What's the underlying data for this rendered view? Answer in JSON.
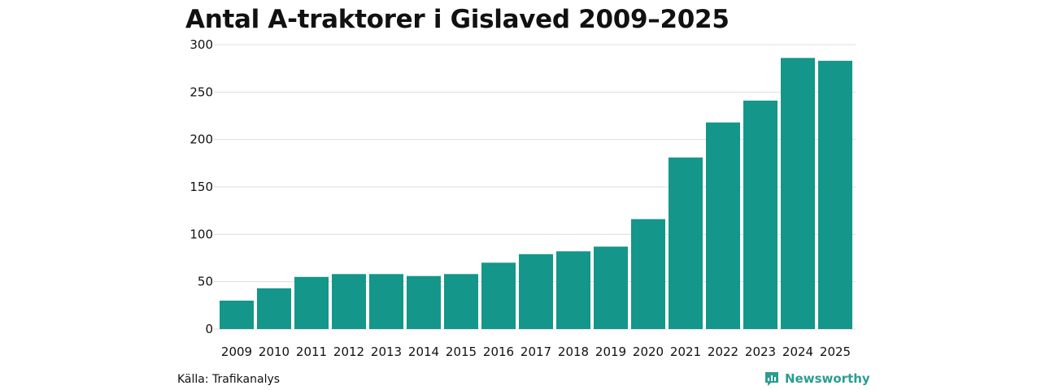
{
  "chart_data": {
    "type": "bar",
    "title": "Antal A-traktorer i Gislaved 2009–2025",
    "categories": [
      "2009",
      "2010",
      "2011",
      "2012",
      "2013",
      "2014",
      "2015",
      "2016",
      "2017",
      "2018",
      "2019",
      "2020",
      "2021",
      "2022",
      "2023",
      "2024",
      "2025"
    ],
    "values": [
      30,
      43,
      55,
      58,
      58,
      56,
      58,
      70,
      79,
      82,
      87,
      116,
      181,
      218,
      241,
      286,
      283
    ],
    "ylim": [
      0,
      300
    ],
    "yticks": [
      0,
      50,
      100,
      150,
      200,
      250,
      300
    ],
    "grid": true,
    "bar_color": "#14968a",
    "xlabel": "",
    "ylabel": ""
  },
  "footer": {
    "source": "Källa: Trafikanalys",
    "brand": "Newsworthy",
    "brand_icon": "newsworthy-logo-icon",
    "brand_color": "#2a9d8f"
  }
}
